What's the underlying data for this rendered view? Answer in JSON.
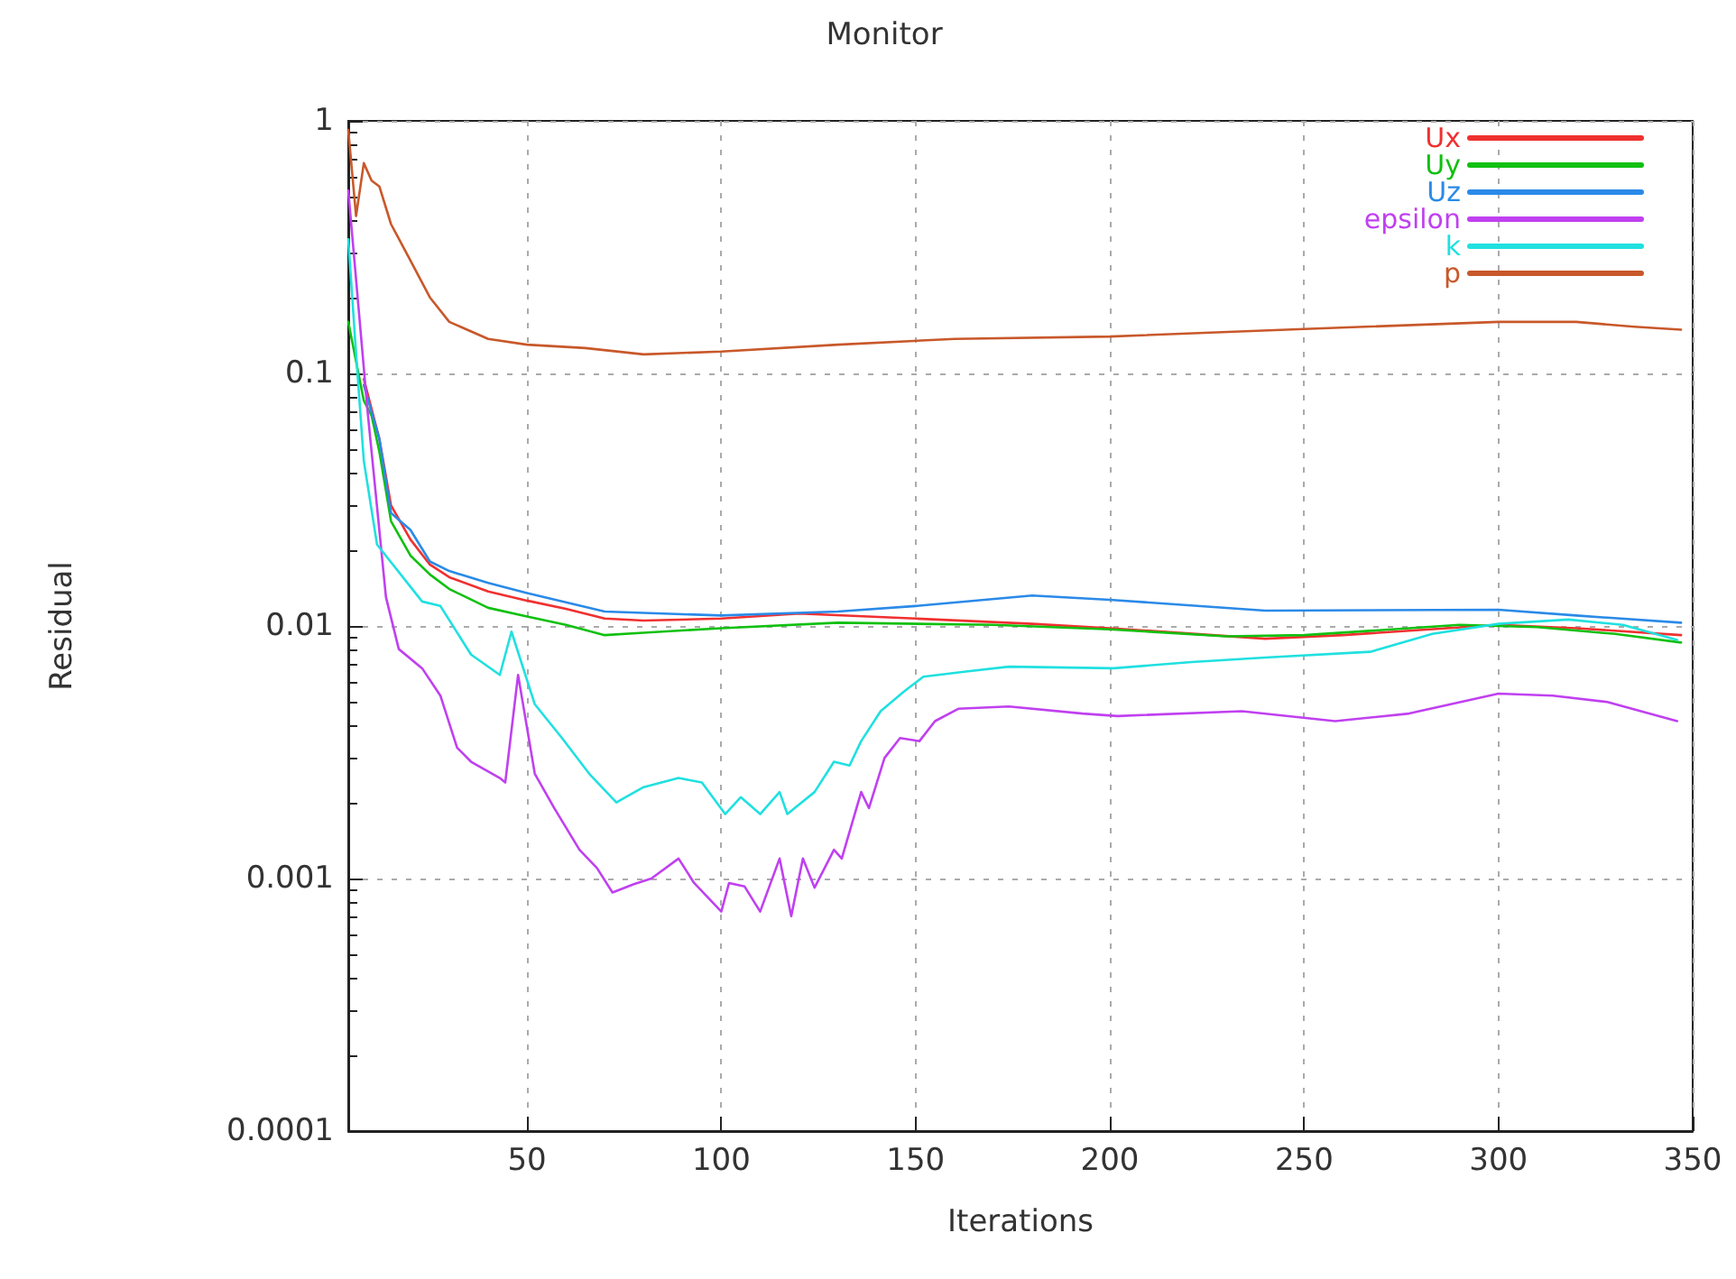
{
  "chart_data": {
    "type": "line",
    "title": "Monitor",
    "xlabel": "Iterations",
    "ylabel": "Residual",
    "xlim": [
      4,
      350
    ],
    "xticks": [
      50,
      100,
      150,
      200,
      250,
      300,
      350
    ],
    "ylim": [
      0.0001,
      1
    ],
    "yticks": [
      0.0001,
      0.001,
      0.01,
      0.1,
      1
    ],
    "log": true,
    "grid": true,
    "legend": "top right",
    "marker": "none",
    "line_style": "solid",
    "series": [
      {
        "name": "Ux",
        "color": "#f03030",
        "x": [
          8,
          12,
          15,
          20,
          25,
          30,
          40,
          50,
          60,
          70,
          80,
          100,
          120,
          150,
          180,
          200,
          240,
          260,
          300,
          320,
          347
        ],
        "values": [
          0.095,
          0.055,
          0.03,
          0.022,
          0.0175,
          0.0156,
          0.0137,
          0.0126,
          0.0117,
          0.0107,
          0.0105,
          0.0107,
          0.0112,
          0.0107,
          0.0102,
          0.0098,
          0.0089,
          0.0092,
          0.0101,
          0.0098,
          0.0092
        ]
      },
      {
        "name": "Uy",
        "color": "#10c010",
        "x": [
          4,
          8,
          10,
          12,
          15,
          20,
          25,
          30,
          40,
          50,
          60,
          70,
          80,
          100,
          130,
          170,
          200,
          230,
          250,
          290,
          310,
          330,
          347
        ],
        "values": [
          0.16,
          0.078,
          0.068,
          0.049,
          0.026,
          0.019,
          0.016,
          0.014,
          0.0118,
          0.0109,
          0.0101,
          0.0092,
          0.0094,
          0.0098,
          0.0103,
          0.0101,
          0.0097,
          0.0091,
          0.0092,
          0.0101,
          0.0099,
          0.0093,
          0.0086
        ]
      },
      {
        "name": "Uz",
        "color": "#2a8ae8",
        "x": [
          8,
          12,
          15,
          20,
          25,
          30,
          40,
          50,
          70,
          100,
          130,
          150,
          180,
          200,
          240,
          300,
          320,
          347
        ],
        "values": [
          0.09,
          0.055,
          0.028,
          0.024,
          0.018,
          0.0165,
          0.0148,
          0.0135,
          0.0114,
          0.011,
          0.0114,
          0.012,
          0.0132,
          0.0127,
          0.0115,
          0.0116,
          0.011,
          0.0103
        ]
      },
      {
        "name": "epsilon",
        "color": "#c040f0",
        "x": [
          4,
          9,
          13.7,
          17,
          23,
          27.7,
          32,
          35.6,
          43,
          44.4,
          47.7,
          52,
          57,
          63.5,
          68,
          72,
          77.5,
          82,
          89,
          93,
          100,
          102,
          106,
          110,
          115,
          118,
          121,
          124,
          129,
          131,
          136,
          138,
          142,
          146,
          151,
          155,
          161,
          174,
          193,
          202,
          234,
          258,
          277,
          300,
          314,
          328,
          346
        ],
        "values": [
          0.53,
          0.07,
          0.013,
          0.0081,
          0.0068,
          0.0053,
          0.0033,
          0.0029,
          0.0025,
          0.0024,
          0.0064,
          0.0026,
          0.0019,
          0.0013,
          0.0011,
          0.00088,
          0.00095,
          0.001,
          0.0012,
          0.00096,
          0.00074,
          0.00096,
          0.00093,
          0.00074,
          0.0012,
          0.00071,
          0.0012,
          0.00092,
          0.0013,
          0.0012,
          0.0022,
          0.0019,
          0.003,
          0.0036,
          0.0035,
          0.0042,
          0.0047,
          0.0048,
          0.0045,
          0.0044,
          0.0046,
          0.0042,
          0.0045,
          0.0054,
          0.0053,
          0.005,
          0.0042
        ]
      },
      {
        "name": "k",
        "color": "#20e0e0",
        "x": [
          4,
          6,
          8,
          11.4,
          23,
          27.7,
          35.6,
          43,
          46,
          52,
          59,
          66,
          73,
          80,
          89,
          95,
          101,
          105,
          110,
          115,
          117,
          124,
          129,
          133,
          136,
          141,
          147,
          152,
          163,
          174,
          201,
          221,
          240,
          267,
          283,
          300,
          318,
          332,
          346
        ],
        "values": [
          0.34,
          0.12,
          0.045,
          0.021,
          0.0125,
          0.012,
          0.0077,
          0.0064,
          0.0095,
          0.0049,
          0.0036,
          0.0026,
          0.002,
          0.0023,
          0.0025,
          0.0024,
          0.0018,
          0.0021,
          0.0018,
          0.0022,
          0.0018,
          0.0022,
          0.0029,
          0.0028,
          0.0035,
          0.0046,
          0.0055,
          0.0063,
          0.0066,
          0.0069,
          0.0068,
          0.0072,
          0.0075,
          0.0079,
          0.0093,
          0.0102,
          0.0106,
          0.0101,
          0.0088
        ]
      },
      {
        "name": "p",
        "color": "#c8582a",
        "x": [
          4,
          6,
          8,
          10,
          12,
          15,
          20,
          25,
          30,
          40,
          50,
          65,
          80,
          100,
          130,
          160,
          200,
          250,
          300,
          320,
          335,
          347
        ],
        "values": [
          0.92,
          0.42,
          0.68,
          0.58,
          0.55,
          0.39,
          0.28,
          0.2,
          0.16,
          0.137,
          0.13,
          0.126,
          0.119,
          0.122,
          0.13,
          0.137,
          0.14,
          0.15,
          0.16,
          0.16,
          0.153,
          0.149
        ]
      }
    ]
  }
}
